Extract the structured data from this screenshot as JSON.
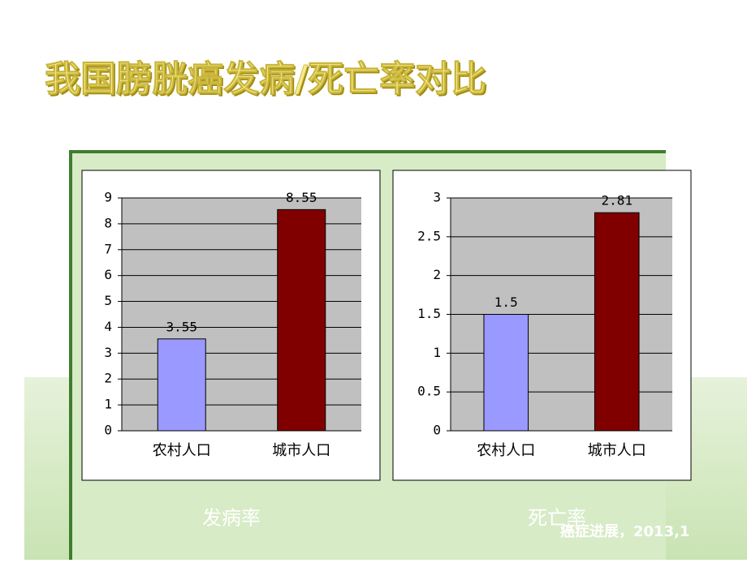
{
  "slide": {
    "title": "我国膀胱癌发病/死亡率对比",
    "source": "癌症进展，2013,1"
  },
  "chart_data": [
    {
      "type": "bar",
      "title": "发病率",
      "categories": [
        "农村人口",
        "城市人口"
      ],
      "values": [
        3.55,
        8.55
      ],
      "colors": [
        "#9999ff",
        "#800000"
      ],
      "ylim": [
        0,
        9
      ],
      "yticks": [
        0,
        1,
        2,
        3,
        4,
        5,
        6,
        7,
        8,
        9
      ],
      "grid": true
    },
    {
      "type": "bar",
      "title": "死亡率",
      "categories": [
        "农村人口",
        "城市人口"
      ],
      "values": [
        1.5,
        2.81
      ],
      "colors": [
        "#9999ff",
        "#800000"
      ],
      "ylim": [
        0,
        3
      ],
      "yticks": [
        0,
        0.5,
        1,
        1.5,
        2,
        2.5,
        3
      ],
      "grid": true
    }
  ]
}
